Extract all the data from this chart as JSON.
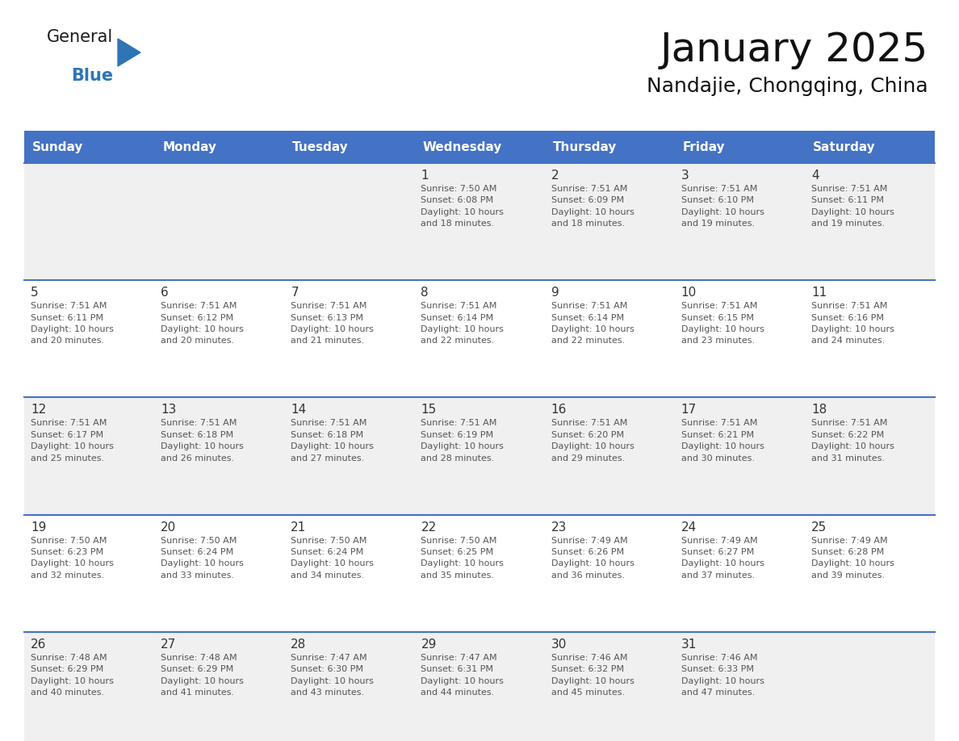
{
  "title": "January 2025",
  "subtitle": "Nandajie, Chongqing, China",
  "days_of_week": [
    "Sunday",
    "Monday",
    "Tuesday",
    "Wednesday",
    "Thursday",
    "Friday",
    "Saturday"
  ],
  "header_bg_color": "#4472C4",
  "header_text_color": "#FFFFFF",
  "row_bg_colors": [
    "#F0F0F0",
    "#FFFFFF"
  ],
  "cell_text_color": "#555555",
  "day_num_color": "#333333",
  "divider_color": "#4472C4",
  "logo_general_color": "#1a1a1a",
  "logo_blue_color": "#2E75B6",
  "calendar_data": [
    [
      {
        "day": null,
        "info": null
      },
      {
        "day": null,
        "info": null
      },
      {
        "day": null,
        "info": null
      },
      {
        "day": 1,
        "info": "Sunrise: 7:50 AM\nSunset: 6:08 PM\nDaylight: 10 hours\nand 18 minutes."
      },
      {
        "day": 2,
        "info": "Sunrise: 7:51 AM\nSunset: 6:09 PM\nDaylight: 10 hours\nand 18 minutes."
      },
      {
        "day": 3,
        "info": "Sunrise: 7:51 AM\nSunset: 6:10 PM\nDaylight: 10 hours\nand 19 minutes."
      },
      {
        "day": 4,
        "info": "Sunrise: 7:51 AM\nSunset: 6:11 PM\nDaylight: 10 hours\nand 19 minutes."
      }
    ],
    [
      {
        "day": 5,
        "info": "Sunrise: 7:51 AM\nSunset: 6:11 PM\nDaylight: 10 hours\nand 20 minutes."
      },
      {
        "day": 6,
        "info": "Sunrise: 7:51 AM\nSunset: 6:12 PM\nDaylight: 10 hours\nand 20 minutes."
      },
      {
        "day": 7,
        "info": "Sunrise: 7:51 AM\nSunset: 6:13 PM\nDaylight: 10 hours\nand 21 minutes."
      },
      {
        "day": 8,
        "info": "Sunrise: 7:51 AM\nSunset: 6:14 PM\nDaylight: 10 hours\nand 22 minutes."
      },
      {
        "day": 9,
        "info": "Sunrise: 7:51 AM\nSunset: 6:14 PM\nDaylight: 10 hours\nand 22 minutes."
      },
      {
        "day": 10,
        "info": "Sunrise: 7:51 AM\nSunset: 6:15 PM\nDaylight: 10 hours\nand 23 minutes."
      },
      {
        "day": 11,
        "info": "Sunrise: 7:51 AM\nSunset: 6:16 PM\nDaylight: 10 hours\nand 24 minutes."
      }
    ],
    [
      {
        "day": 12,
        "info": "Sunrise: 7:51 AM\nSunset: 6:17 PM\nDaylight: 10 hours\nand 25 minutes."
      },
      {
        "day": 13,
        "info": "Sunrise: 7:51 AM\nSunset: 6:18 PM\nDaylight: 10 hours\nand 26 minutes."
      },
      {
        "day": 14,
        "info": "Sunrise: 7:51 AM\nSunset: 6:18 PM\nDaylight: 10 hours\nand 27 minutes."
      },
      {
        "day": 15,
        "info": "Sunrise: 7:51 AM\nSunset: 6:19 PM\nDaylight: 10 hours\nand 28 minutes."
      },
      {
        "day": 16,
        "info": "Sunrise: 7:51 AM\nSunset: 6:20 PM\nDaylight: 10 hours\nand 29 minutes."
      },
      {
        "day": 17,
        "info": "Sunrise: 7:51 AM\nSunset: 6:21 PM\nDaylight: 10 hours\nand 30 minutes."
      },
      {
        "day": 18,
        "info": "Sunrise: 7:51 AM\nSunset: 6:22 PM\nDaylight: 10 hours\nand 31 minutes."
      }
    ],
    [
      {
        "day": 19,
        "info": "Sunrise: 7:50 AM\nSunset: 6:23 PM\nDaylight: 10 hours\nand 32 minutes."
      },
      {
        "day": 20,
        "info": "Sunrise: 7:50 AM\nSunset: 6:24 PM\nDaylight: 10 hours\nand 33 minutes."
      },
      {
        "day": 21,
        "info": "Sunrise: 7:50 AM\nSunset: 6:24 PM\nDaylight: 10 hours\nand 34 minutes."
      },
      {
        "day": 22,
        "info": "Sunrise: 7:50 AM\nSunset: 6:25 PM\nDaylight: 10 hours\nand 35 minutes."
      },
      {
        "day": 23,
        "info": "Sunrise: 7:49 AM\nSunset: 6:26 PM\nDaylight: 10 hours\nand 36 minutes."
      },
      {
        "day": 24,
        "info": "Sunrise: 7:49 AM\nSunset: 6:27 PM\nDaylight: 10 hours\nand 37 minutes."
      },
      {
        "day": 25,
        "info": "Sunrise: 7:49 AM\nSunset: 6:28 PM\nDaylight: 10 hours\nand 39 minutes."
      }
    ],
    [
      {
        "day": 26,
        "info": "Sunrise: 7:48 AM\nSunset: 6:29 PM\nDaylight: 10 hours\nand 40 minutes."
      },
      {
        "day": 27,
        "info": "Sunrise: 7:48 AM\nSunset: 6:29 PM\nDaylight: 10 hours\nand 41 minutes."
      },
      {
        "day": 28,
        "info": "Sunrise: 7:47 AM\nSunset: 6:30 PM\nDaylight: 10 hours\nand 43 minutes."
      },
      {
        "day": 29,
        "info": "Sunrise: 7:47 AM\nSunset: 6:31 PM\nDaylight: 10 hours\nand 44 minutes."
      },
      {
        "day": 30,
        "info": "Sunrise: 7:46 AM\nSunset: 6:32 PM\nDaylight: 10 hours\nand 45 minutes."
      },
      {
        "day": 31,
        "info": "Sunrise: 7:46 AM\nSunset: 6:33 PM\nDaylight: 10 hours\nand 47 minutes."
      },
      {
        "day": null,
        "info": null
      }
    ]
  ],
  "fig_width": 11.88,
  "fig_height": 9.18,
  "dpi": 100
}
